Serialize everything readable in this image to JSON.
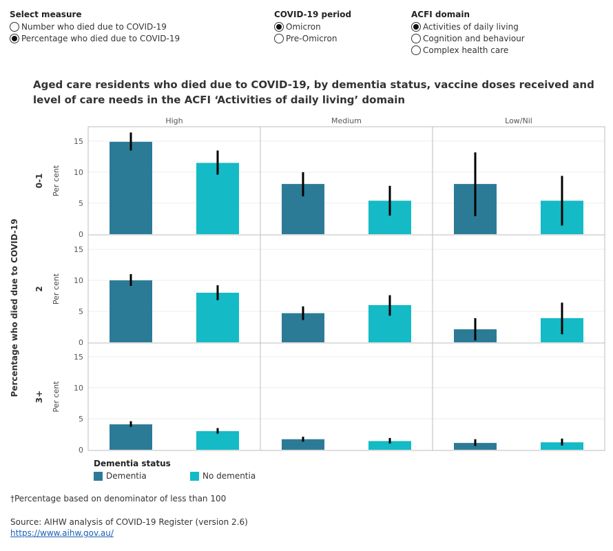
{
  "controls": {
    "measure": {
      "title": "Select measure",
      "options": [
        {
          "label": "Number who died due to COVID-19",
          "selected": false
        },
        {
          "label": "Percentage who died due to COVID-19",
          "selected": true
        }
      ]
    },
    "period": {
      "title": "COVID-19 period",
      "options": [
        {
          "label": "Omicron",
          "selected": true
        },
        {
          "label": "Pre-Omicron",
          "selected": false
        }
      ]
    },
    "domain": {
      "title": "ACFI domain",
      "options": [
        {
          "label": "Activities of daily living",
          "selected": true
        },
        {
          "label": "Cognition and behaviour",
          "selected": false
        },
        {
          "label": "Complex health care",
          "selected": false
        }
      ]
    }
  },
  "chart_data": {
    "type": "bar",
    "title": "Aged care residents who died due to COVID-19, by dementia status, vaccine doses received and level of care needs in the ACFI ‘Activities of daily living’ domain",
    "ylabel_outer": "Percentage who died due to COVID-19",
    "ylabel_inner": "Per cent",
    "columns": [
      "High",
      "Medium",
      "Low/Nil"
    ],
    "rows": [
      "0-1",
      "2",
      "3+"
    ],
    "ylim": [
      0,
      17
    ],
    "yticks": [
      0,
      5,
      10,
      15
    ],
    "series": [
      {
        "name": "Dementia",
        "color": "#2c7b96"
      },
      {
        "name": "No dementia",
        "color": "#14bac5"
      }
    ],
    "values": {
      "0-1": {
        "High": {
          "Dementia": {
            "v": 14.9,
            "lo": 13.5,
            "hi": 16.4
          },
          "No dementia": {
            "v": 11.5,
            "lo": 9.6,
            "hi": 13.5
          }
        },
        "Medium": {
          "Dementia": {
            "v": 8.1,
            "lo": 6.1,
            "hi": 10.0
          },
          "No dementia": {
            "v": 5.4,
            "lo": 3.0,
            "hi": 7.8
          }
        },
        "Low/Nil": {
          "Dementia": {
            "v": 8.1,
            "lo": 2.9,
            "hi": 13.2
          },
          "No dementia": {
            "v": 5.4,
            "lo": 1.4,
            "hi": 9.4
          }
        }
      },
      "2": {
        "High": {
          "Dementia": {
            "v": 10.0,
            "lo": 9.1,
            "hi": 11.0
          },
          "No dementia": {
            "v": 8.0,
            "lo": 6.8,
            "hi": 9.2
          }
        },
        "Medium": {
          "Dementia": {
            "v": 4.7,
            "lo": 3.6,
            "hi": 5.8
          },
          "No dementia": {
            "v": 6.0,
            "lo": 4.3,
            "hi": 7.6
          }
        },
        "Low/Nil": {
          "Dementia": {
            "v": 2.1,
            "lo": 0.3,
            "hi": 3.9
          },
          "No dementia": {
            "v": 3.9,
            "lo": 1.3,
            "hi": 6.4
          }
        }
      },
      "3+": {
        "High": {
          "Dementia": {
            "v": 4.1,
            "lo": 3.7,
            "hi": 4.6
          },
          "No dementia": {
            "v": 3.0,
            "lo": 2.6,
            "hi": 3.5
          }
        },
        "Medium": {
          "Dementia": {
            "v": 1.7,
            "lo": 1.3,
            "hi": 2.1
          },
          "No dementia": {
            "v": 1.4,
            "lo": 1.0,
            "hi": 1.9
          }
        },
        "Low/Nil": {
          "Dementia": {
            "v": 1.1,
            "lo": 0.6,
            "hi": 1.7
          },
          "No dementia": {
            "v": 1.2,
            "lo": 0.7,
            "hi": 1.8
          }
        }
      }
    },
    "legend_title": "Dementia status",
    "legend_position": "bottom-left",
    "grid": true
  },
  "footnote": "†Percentage based on denominator of less than 100",
  "source": "Source: AIHW analysis of COVID-19 Register (version 2.6)",
  "source_link": "https://www.aihw.gov.au/"
}
